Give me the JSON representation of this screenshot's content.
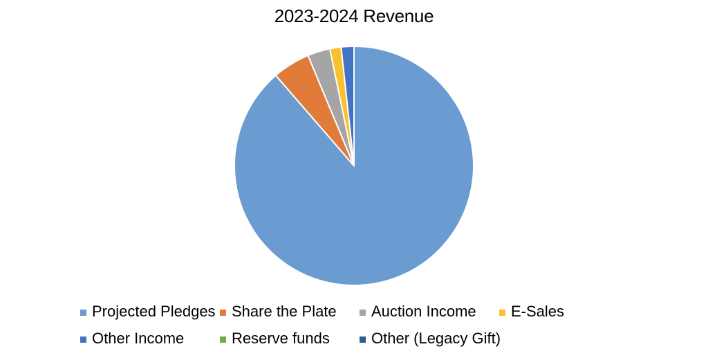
{
  "chart_data": {
    "type": "pie",
    "title": "2023-2024 Revenue",
    "series": [
      {
        "name": "Projected Pledges",
        "value": 87.5,
        "color": "#6a9bd1"
      },
      {
        "name": "Share the Plate",
        "value": 5.0,
        "color": "#e07b39"
      },
      {
        "name": "Auction Income",
        "value": 3.0,
        "color": "#a5a5a5"
      },
      {
        "name": "E-Sales",
        "value": 1.5,
        "color": "#f8c12d"
      },
      {
        "name": "Other Income",
        "value": 1.7,
        "color": "#4472c4"
      },
      {
        "name": "Reserve funds",
        "value": 0.0,
        "color": "#70ad47"
      },
      {
        "name": "Other (Legacy Gift)",
        "value": 0.0,
        "color": "#255e91"
      }
    ],
    "legend_position": "bottom",
    "start_angle": "12 o'clock",
    "direction": "clockwise"
  }
}
